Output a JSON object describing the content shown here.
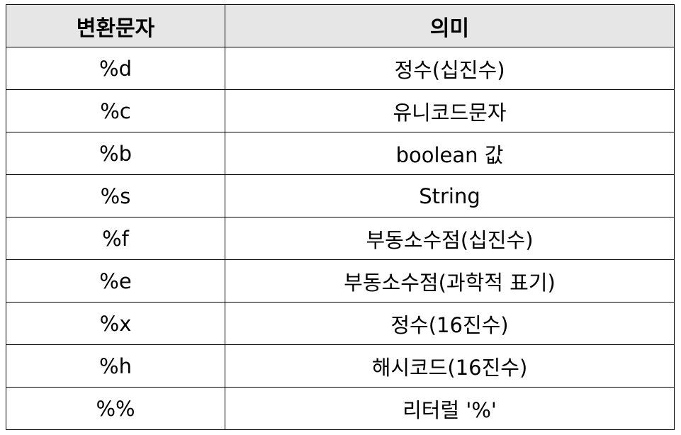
{
  "table": {
    "headers": [
      "변환문자",
      "의미"
    ],
    "header_bg": "#e7e6e6",
    "border_color": "#000000",
    "rows": [
      [
        "%d",
        "정수(십진수)"
      ],
      [
        "%c",
        "유니코드문자"
      ],
      [
        "%b",
        "boolean 값"
      ],
      [
        "%s",
        "String"
      ],
      [
        "%f",
        "부동소수점(십진수)"
      ],
      [
        "%e",
        "부동소수점(과학적 표기)"
      ],
      [
        "%x",
        "정수(16진수)"
      ],
      [
        "%h",
        "해시코드(16진수)"
      ],
      [
        "%%",
        "리터럴 '%'"
      ]
    ]
  }
}
